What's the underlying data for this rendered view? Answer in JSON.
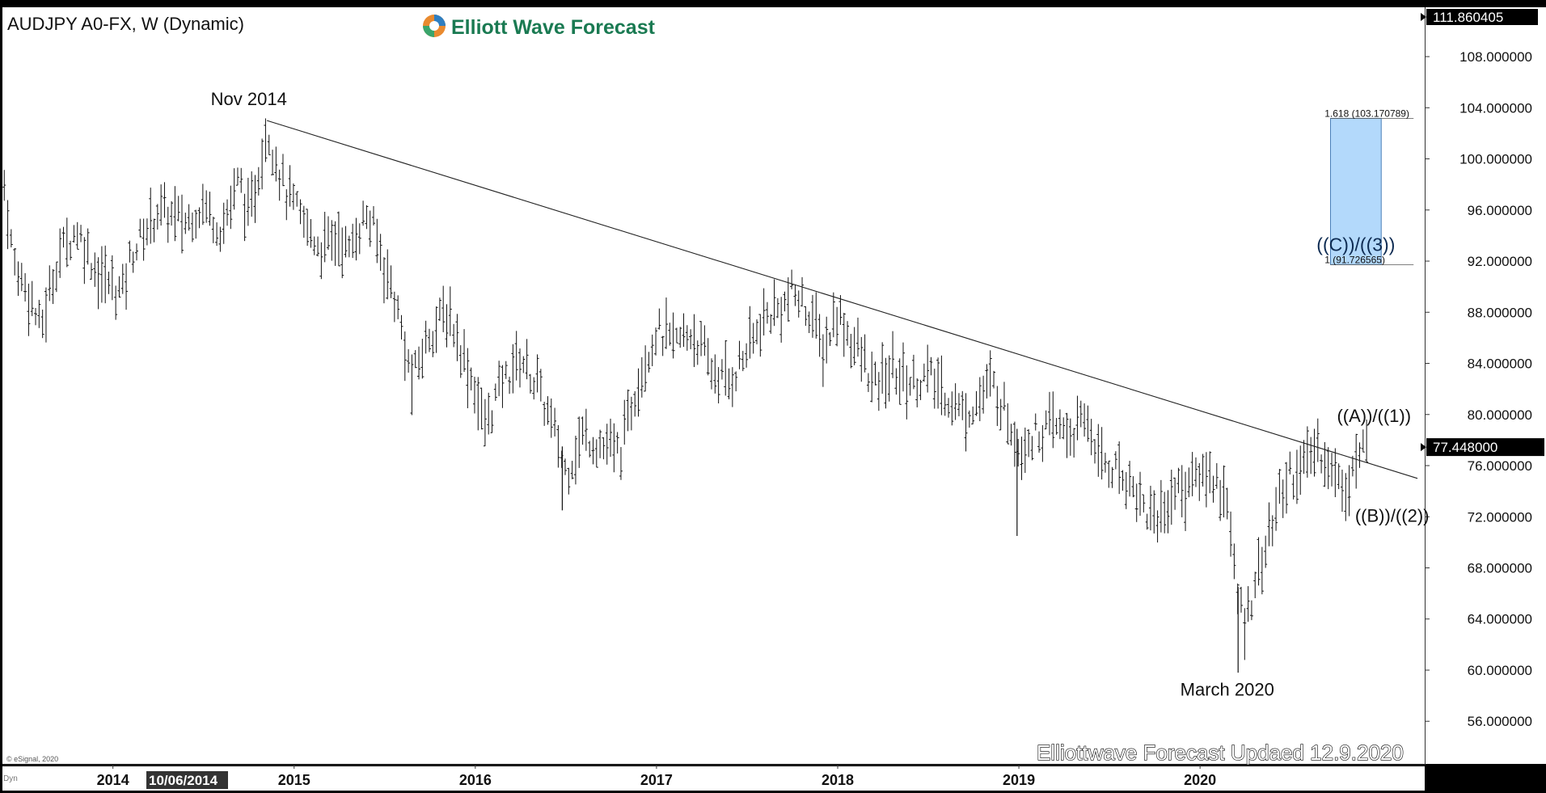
{
  "chart_data": {
    "type": "ohlc-bar",
    "title": "AUDJPY A0-FX, W (Dynamic)",
    "brand": "Elliott Wave Forecast",
    "footer": "Elliottwave Forecast Updaed 12.9.2020",
    "copyright": "© eSignal, 2020",
    "bottom_left_tag": "Dyn",
    "x_tick_labels": [
      "2014",
      "2015",
      "2016",
      "2017",
      "2018",
      "2019",
      "2020"
    ],
    "x_ticks": [
      2014,
      2015,
      2016,
      2017,
      2018,
      2019,
      2020
    ],
    "cursor_date_label": "10/06/2014",
    "xlim": [
      2013.39,
      2021.24
    ],
    "ylim": [
      52.6,
      111.860405
    ],
    "y_ticks": [
      56,
      60,
      64,
      68,
      72,
      76,
      80,
      84,
      88,
      92,
      96,
      100,
      104,
      108
    ],
    "y_tick_labels": [
      "56.000000",
      "60.000000",
      "64.000000",
      "68.000000",
      "72.000000",
      "76.000000",
      "80.000000",
      "84.000000",
      "88.000000",
      "92.000000",
      "96.000000",
      "100.000000",
      "104.000000",
      "108.000000"
    ],
    "price_top_label": "111.860405",
    "last_price": 77.448,
    "last_price_label": "77.448000",
    "anchors": [
      [
        2013.4,
        98.0
      ],
      [
        2013.45,
        92.0
      ],
      [
        2013.55,
        89.0
      ],
      [
        2013.6,
        86.5
      ],
      [
        2013.7,
        92.5
      ],
      [
        2013.8,
        94.5
      ],
      [
        2013.92,
        91.0
      ],
      [
        2014.05,
        89.5
      ],
      [
        2014.1,
        92.5
      ],
      [
        2014.25,
        96.0
      ],
      [
        2014.4,
        95.0
      ],
      [
        2014.5,
        96.5
      ],
      [
        2014.6,
        94.5
      ],
      [
        2014.7,
        98.5
      ],
      [
        2014.75,
        95.0
      ],
      [
        2014.85,
        102.5
      ],
      [
        2014.9,
        100.0
      ],
      [
        2014.95,
        97.5
      ],
      [
        2015.05,
        95.0
      ],
      [
        2015.15,
        93.0
      ],
      [
        2015.25,
        94.0
      ],
      [
        2015.3,
        92.5
      ],
      [
        2015.35,
        94.5
      ],
      [
        2015.4,
        95.5
      ],
      [
        2015.45,
        94.0
      ],
      [
        2015.5,
        91.5
      ],
      [
        2015.55,
        89.5
      ],
      [
        2015.6,
        86.0
      ],
      [
        2015.65,
        82.5
      ],
      [
        2015.75,
        86.5
      ],
      [
        2015.85,
        88.0
      ],
      [
        2015.9,
        86.0
      ],
      [
        2016.0,
        82.0
      ],
      [
        2016.05,
        79.0
      ],
      [
        2016.15,
        82.5
      ],
      [
        2016.25,
        84.5
      ],
      [
        2016.35,
        82.0
      ],
      [
        2016.45,
        78.0
      ],
      [
        2016.5,
        75.5
      ],
      [
        2016.6,
        78.5
      ],
      [
        2016.7,
        77.5
      ],
      [
        2016.8,
        77.0
      ],
      [
        2016.9,
        83.0
      ],
      [
        2017.0,
        86.5
      ],
      [
        2017.1,
        85.5
      ],
      [
        2017.2,
        86.5
      ],
      [
        2017.3,
        83.5
      ],
      [
        2017.4,
        82.5
      ],
      [
        2017.5,
        85.0
      ],
      [
        2017.6,
        87.5
      ],
      [
        2017.7,
        88.5
      ],
      [
        2017.75,
        89.5
      ],
      [
        2017.85,
        88.0
      ],
      [
        2017.92,
        85.0
      ],
      [
        2018.0,
        88.0
      ],
      [
        2018.05,
        86.5
      ],
      [
        2018.15,
        84.0
      ],
      [
        2018.2,
        82.0
      ],
      [
        2018.3,
        83.5
      ],
      [
        2018.4,
        82.5
      ],
      [
        2018.5,
        83.0
      ],
      [
        2018.6,
        81.5
      ],
      [
        2018.7,
        80.0
      ],
      [
        2018.8,
        81.5
      ],
      [
        2018.85,
        82.5
      ],
      [
        2018.92,
        80.5
      ],
      [
        2019.0,
        77.5
      ],
      [
        2019.1,
        78.5
      ],
      [
        2019.2,
        79.0
      ],
      [
        2019.3,
        78.5
      ],
      [
        2019.38,
        79.5
      ],
      [
        2019.45,
        76.5
      ],
      [
        2019.55,
        75.5
      ],
      [
        2019.6,
        75.0
      ],
      [
        2019.65,
        74.0
      ],
      [
        2019.7,
        72.5
      ],
      [
        2019.78,
        72.0
      ],
      [
        2019.85,
        74.0
      ],
      [
        2019.95,
        74.5
      ],
      [
        2020.0,
        75.5
      ],
      [
        2020.08,
        75.0
      ],
      [
        2020.15,
        73.5
      ],
      [
        2020.2,
        66.0
      ],
      [
        2020.25,
        63.5
      ],
      [
        2020.3,
        67.0
      ],
      [
        2020.35,
        69.0
      ],
      [
        2020.4,
        71.5
      ],
      [
        2020.45,
        74.0
      ],
      [
        2020.5,
        75.5
      ],
      [
        2020.55,
        75.5
      ],
      [
        2020.6,
        76.5
      ],
      [
        2020.65,
        77.5
      ],
      [
        2020.7,
        76.5
      ],
      [
        2020.75,
        75.0
      ],
      [
        2020.8,
        74.5
      ],
      [
        2020.85,
        76.0
      ],
      [
        2020.9,
        77.2
      ],
      [
        2020.92,
        77.4
      ]
    ],
    "spikes": [
      {
        "x": 2016.48,
        "low": 72.5
      },
      {
        "x": 2018.99,
        "low": 70.5
      },
      {
        "x": 2020.21,
        "low": 59.8
      }
    ],
    "trendline": {
      "from": [
        2014.85,
        103.0
      ],
      "to": [
        2021.2,
        75.0
      ]
    },
    "fib_box": {
      "x1": 2020.72,
      "x2": 2021.0,
      "y1": 91.726565,
      "y2": 103.170789,
      "color": "#b3d9fb"
    },
    "fib_labels": [
      {
        "text": "1.618 (103.170789)",
        "y": 103.170789
      },
      {
        "text": "1 (91.726565)",
        "y": 91.726565
      }
    ],
    "annotations": [
      {
        "text": "Nov 2014",
        "x": 2014.75,
        "y": 104.2
      },
      {
        "text": "((A))/((1))",
        "x": 2020.96,
        "y": 79.4
      },
      {
        "text": "((B))/((2))",
        "x": 2021.06,
        "y": 71.6
      },
      {
        "text": "March 2020",
        "x": 2020.15,
        "y": 58.0
      },
      {
        "text": "((C))/((3))",
        "x": 2020.86,
        "y": 92.8
      }
    ]
  }
}
